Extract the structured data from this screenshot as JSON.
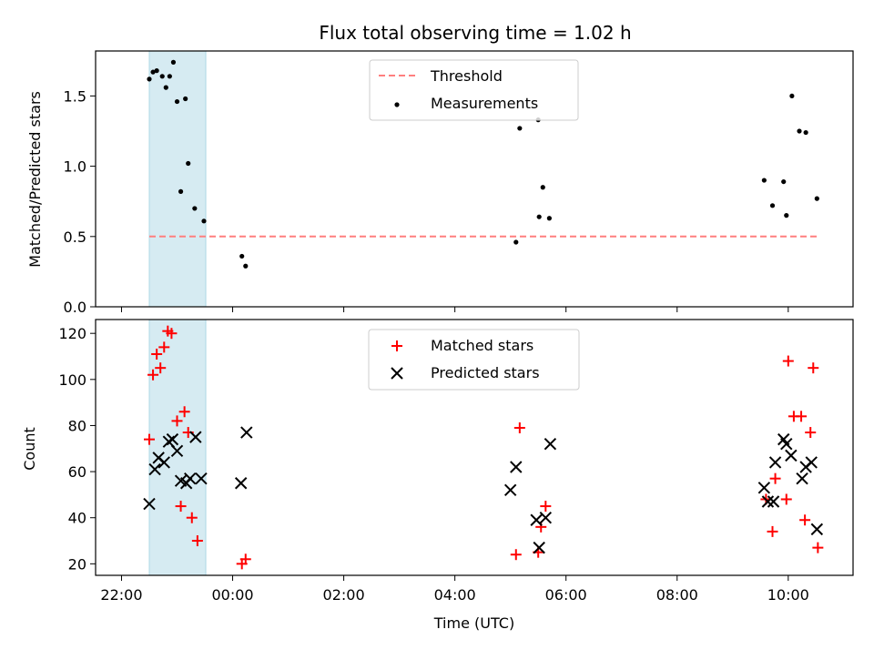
{
  "chart_data": [
    {
      "type": "scatter",
      "title": "Flux total observing time = 1.02 h",
      "xlabel": "",
      "ylabel": "Matched/Predicted stars",
      "xlim": [
        "21:32",
        "11:10"
      ],
      "ylim": [
        0,
        1.82
      ],
      "yticks": [
        "0.0",
        "0.5",
        "1.0",
        "1.5"
      ],
      "shaded_region": {
        "x_start": "22:30",
        "x_end": "23:31",
        "color": "#add8e6"
      },
      "legend_position": "top-center",
      "series": [
        {
          "name": "Threshold",
          "style": "dashed-line",
          "color": "#ff7f7f",
          "x": [
            "22:30",
            "10:32"
          ],
          "y": [
            0.5,
            0.5
          ]
        },
        {
          "name": "Measurements",
          "style": "dot",
          "color": "#000000",
          "x": [
            "22:30",
            "22:34",
            "22:38",
            "22:44",
            "22:48",
            "22:52",
            "22:56",
            "23:00",
            "23:04",
            "23:09",
            "23:12",
            "23:19",
            "23:29",
            "00:10",
            "00:14",
            "05:06",
            "05:10",
            "05:30",
            "05:31",
            "05:35",
            "05:42",
            "09:34",
            "09:43",
            "09:55",
            "09:58",
            "10:04",
            "10:12",
            "10:19",
            "10:31"
          ],
          "y": [
            1.62,
            1.67,
            1.68,
            1.64,
            1.56,
            1.64,
            1.74,
            1.46,
            0.82,
            1.48,
            1.02,
            0.7,
            0.61,
            0.36,
            0.29,
            0.46,
            1.27,
            1.33,
            0.64,
            0.85,
            0.63,
            0.9,
            0.72,
            0.89,
            0.65,
            1.5,
            1.25,
            1.24,
            0.77
          ]
        }
      ]
    },
    {
      "type": "scatter",
      "xlabel": "Time (UTC)",
      "ylabel": "Count",
      "xlim": [
        "21:32",
        "11:10"
      ],
      "ylim": [
        15,
        126
      ],
      "xticks": [
        "22:00",
        "00:00",
        "02:00",
        "04:00",
        "06:00",
        "08:00",
        "10:00"
      ],
      "yticks": [
        "20",
        "40",
        "60",
        "80",
        "100",
        "120"
      ],
      "shaded_region": {
        "x_start": "22:30",
        "x_end": "23:31",
        "color": "#add8e6"
      },
      "legend_position": "top-center",
      "series": [
        {
          "name": "Matched stars",
          "marker": "plus",
          "color": "#ff0000",
          "x": [
            "22:30",
            "22:34",
            "22:38",
            "22:42",
            "22:46",
            "22:50",
            "22:54",
            "23:00",
            "23:04",
            "23:08",
            "23:12",
            "23:16",
            "23:22",
            "00:10",
            "00:14",
            "05:06",
            "05:10",
            "05:30",
            "05:33",
            "05:38",
            "09:36",
            "09:43",
            "09:46",
            "09:58",
            "10:00",
            "10:06",
            "10:14",
            "10:18",
            "10:24",
            "10:27",
            "10:32"
          ],
          "y": [
            74,
            102,
            111,
            105,
            114,
            121,
            120,
            82,
            45,
            86,
            77,
            40,
            30,
            20,
            22,
            24,
            79,
            25,
            36,
            45,
            48,
            34,
            57,
            48,
            108,
            84,
            84,
            39,
            77,
            105,
            27
          ]
        },
        {
          "name": "Predicted stars",
          "marker": "x",
          "color": "#000000",
          "x": [
            "22:30",
            "22:36",
            "22:40",
            "22:46",
            "22:51",
            "22:55",
            "23:00",
            "23:04",
            "23:10",
            "23:14",
            "23:20",
            "23:26",
            "00:09",
            "00:15",
            "05:00",
            "05:06",
            "05:28",
            "05:31",
            "05:38",
            "05:43",
            "09:34",
            "09:38",
            "09:44",
            "09:46",
            "09:55",
            "09:58",
            "10:03",
            "10:15",
            "10:19",
            "10:25",
            "10:31"
          ],
          "y": [
            46,
            61,
            66,
            64,
            73,
            74,
            69,
            56,
            55,
            57,
            75,
            57,
            55,
            77,
            52,
            62,
            39,
            27,
            40,
            72,
            53,
            47,
            47,
            64,
            74,
            72,
            67,
            57,
            62,
            64,
            35
          ]
        }
      ]
    }
  ]
}
